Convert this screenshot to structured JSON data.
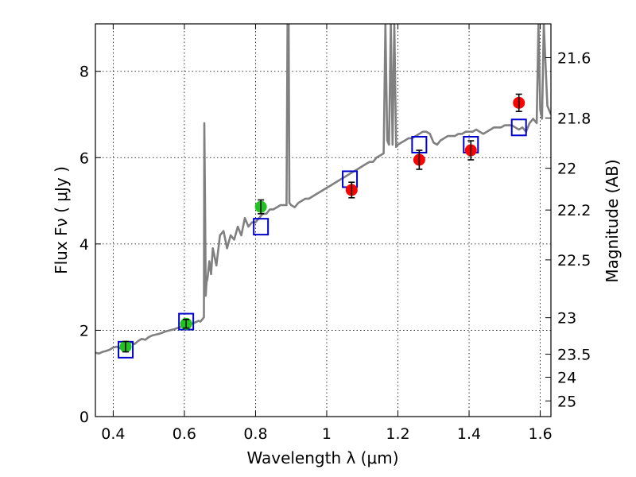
{
  "chart_data": {
    "type": "scatter",
    "title": "",
    "xlabel": "Wavelength  λ (μm)",
    "ylabel": "Flux  Fν  ( μJy )",
    "ylabel_right": "Magnitude (AB)",
    "xlim": [
      0.35,
      1.63
    ],
    "ylim": [
      0,
      9.1
    ],
    "grid": true,
    "x_ticks": [
      0.4,
      0.6,
      0.8,
      1.0,
      1.2,
      1.4,
      1.6
    ],
    "x_tick_labels": [
      "0.4",
      "0.6",
      "0.8",
      "1",
      "1.2",
      "1.4",
      "1.6"
    ],
    "y_ticks": [
      0,
      2,
      4,
      6,
      8
    ],
    "y_tick_labels": [
      "0",
      "2",
      "4",
      "6",
      "8"
    ],
    "magnitude_ticks": [
      {
        "mag": 21.6,
        "label": "21.6"
      },
      {
        "mag": 21.8,
        "label": "21.8"
      },
      {
        "mag": 22.0,
        "label": "22"
      },
      {
        "mag": 22.2,
        "label": "22.2"
      },
      {
        "mag": 22.5,
        "label": "22.5"
      },
      {
        "mag": 23.0,
        "label": "23"
      },
      {
        "mag": 23.5,
        "label": "23.5"
      },
      {
        "mag": 24.0,
        "label": "24"
      },
      {
        "mag": 25.0,
        "label": "25"
      }
    ],
    "series": [
      {
        "kind": "line",
        "color": "#808080",
        "x": [
          0.35,
          0.36,
          0.37,
          0.38,
          0.39,
          0.4,
          0.41,
          0.42,
          0.43,
          0.44,
          0.45,
          0.46,
          0.47,
          0.48,
          0.49,
          0.5,
          0.51,
          0.52,
          0.53,
          0.54,
          0.55,
          0.56,
          0.57,
          0.58,
          0.59,
          0.6,
          0.61,
          0.62,
          0.63,
          0.64,
          0.645,
          0.65,
          0.655,
          0.656,
          0.658,
          0.66,
          0.662,
          0.665,
          0.67,
          0.675,
          0.68,
          0.69,
          0.7,
          0.71,
          0.72,
          0.73,
          0.74,
          0.75,
          0.76,
          0.77,
          0.78,
          0.79,
          0.8,
          0.81,
          0.82,
          0.83,
          0.84,
          0.85,
          0.86,
          0.87,
          0.88,
          0.887,
          0.89,
          0.893,
          0.895,
          0.9,
          0.91,
          0.92,
          0.93,
          0.94,
          0.95,
          0.96,
          0.97,
          0.98,
          0.99,
          1.0,
          1.01,
          1.02,
          1.03,
          1.04,
          1.05,
          1.06,
          1.07,
          1.08,
          1.09,
          1.1,
          1.11,
          1.12,
          1.13,
          1.14,
          1.15,
          1.16,
          1.165,
          1.17,
          1.175,
          1.18,
          1.185,
          1.19,
          1.195,
          1.2,
          1.21,
          1.22,
          1.23,
          1.24,
          1.25,
          1.26,
          1.27,
          1.28,
          1.29,
          1.3,
          1.31,
          1.32,
          1.33,
          1.34,
          1.35,
          1.36,
          1.37,
          1.38,
          1.39,
          1.4,
          1.41,
          1.42,
          1.43,
          1.44,
          1.45,
          1.46,
          1.47,
          1.48,
          1.49,
          1.5,
          1.51,
          1.52,
          1.53,
          1.54,
          1.55,
          1.56,
          1.57,
          1.58,
          1.59,
          1.595,
          1.6,
          1.605,
          1.61,
          1.62,
          1.63
        ],
        "y": [
          1.48,
          1.46,
          1.5,
          1.52,
          1.55,
          1.6,
          1.62,
          1.58,
          1.63,
          1.7,
          1.72,
          1.68,
          1.75,
          1.8,
          1.78,
          1.84,
          1.88,
          1.9,
          1.92,
          1.95,
          1.98,
          2.0,
          2.02,
          2.05,
          2.08,
          2.1,
          2.12,
          2.15,
          2.18,
          2.22,
          2.2,
          2.25,
          2.3,
          6.8,
          5.0,
          2.8,
          3.1,
          3.2,
          3.6,
          3.3,
          3.9,
          3.5,
          4.2,
          4.3,
          3.9,
          4.2,
          4.1,
          4.4,
          4.2,
          4.6,
          4.4,
          4.5,
          4.5,
          4.6,
          4.7,
          4.7,
          4.8,
          4.8,
          4.85,
          4.9,
          4.9,
          4.9,
          9.1,
          9.1,
          4.95,
          4.9,
          4.85,
          4.95,
          5.0,
          5.05,
          5.05,
          5.1,
          5.15,
          5.2,
          5.25,
          5.3,
          5.35,
          5.4,
          5.45,
          5.5,
          5.55,
          5.6,
          5.65,
          5.7,
          5.75,
          5.8,
          5.85,
          5.9,
          5.9,
          6.0,
          6.05,
          6.1,
          9.1,
          6.4,
          6.3,
          9.1,
          6.3,
          9.1,
          6.25,
          6.3,
          6.35,
          6.4,
          6.45,
          6.45,
          6.5,
          6.55,
          6.6,
          6.6,
          6.55,
          6.35,
          6.3,
          6.4,
          6.45,
          6.5,
          6.5,
          6.5,
          6.55,
          6.55,
          6.6,
          6.6,
          6.6,
          6.65,
          6.6,
          6.55,
          6.6,
          6.65,
          6.7,
          6.7,
          6.7,
          6.75,
          6.75,
          6.75,
          6.7,
          6.65,
          6.7,
          6.6,
          6.8,
          6.9,
          6.8,
          9.1,
          7.1,
          6.9,
          9.1,
          7.2,
          7.0
        ]
      },
      {
        "kind": "open-square",
        "color": "#0000cc",
        "x": [
          0.435,
          0.605,
          0.815,
          1.065,
          1.26,
          1.405,
          1.54
        ],
        "y": [
          1.55,
          2.2,
          4.4,
          5.5,
          6.3,
          6.3,
          6.7
        ]
      },
      {
        "kind": "filled-circle",
        "color": "#1fc41f",
        "x": [
          0.435,
          0.605,
          0.815
        ],
        "y": [
          1.62,
          2.15,
          4.86
        ],
        "err": [
          0.12,
          0.1,
          0.16
        ]
      },
      {
        "kind": "filled-circle",
        "color": "#ff0000",
        "x": [
          1.07,
          1.26,
          1.405,
          1.54
        ],
        "y": [
          5.25,
          5.95,
          6.17,
          7.27
        ],
        "err": [
          0.18,
          0.22,
          0.22,
          0.2
        ]
      }
    ]
  }
}
